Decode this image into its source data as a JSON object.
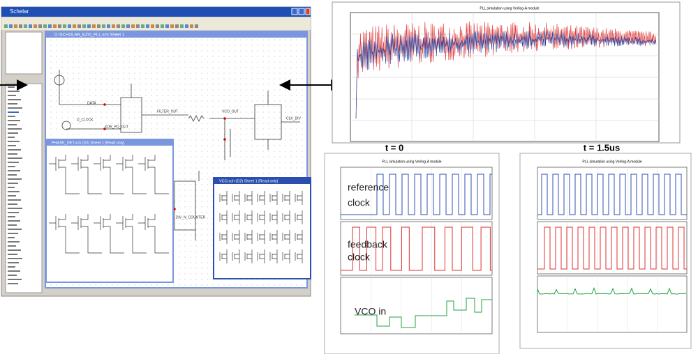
{
  "window": {
    "title": "Schelar",
    "document_title": "D:\\SCHOLAR_EZ\\0_PLL.sch Sheet 1",
    "subwindows": [
      "PHASE_DET.sch (D2) Sheet 1 [Read only]",
      "VCO.sch (D2) Sheet 1 [Read only]"
    ],
    "net_labels": [
      "DATA",
      "D_CLOCK",
      "XOR_PD_OUT",
      "FILTER_OUT",
      "VCO_OUT",
      "CLK_DIV",
      "DIV_N_COUNTER"
    ]
  },
  "top_plot": {
    "title": "PLL simulation using Verilog-A module"
  },
  "snapshots": [
    {
      "heading": "t = 0",
      "title": "PLL simulation using Verilog-A module",
      "labels": [
        [
          "reference",
          "clock"
        ],
        [
          "feedback",
          "clock"
        ],
        [
          "VCO in"
        ]
      ]
    },
    {
      "heading": "t = 1.5us",
      "title": "PLL simulation using Verilog-A module"
    }
  ]
}
